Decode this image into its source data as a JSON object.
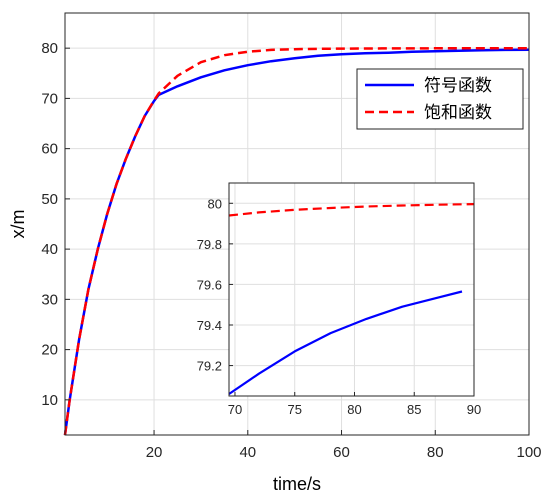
{
  "chart_data": [
    {
      "type": "line",
      "xlabel": "time/s",
      "ylabel": "x/m",
      "xlim": [
        1,
        100
      ],
      "ylim": [
        3,
        87
      ],
      "xticks": [
        "20",
        "40",
        "60",
        "80",
        "100"
      ],
      "yticks": [
        "10",
        "20",
        "30",
        "40",
        "50",
        "60",
        "70",
        "80"
      ],
      "grid": true,
      "legend_position": "top-right",
      "series": [
        {
          "name": "符号函数",
          "color": "#0000ff",
          "style": "solid",
          "x": [
            1,
            2,
            4,
            6,
            8,
            10,
            12,
            14,
            16,
            18,
            20,
            21,
            25,
            30,
            35,
            40,
            45,
            50,
            55,
            60,
            65,
            70,
            75,
            80,
            85,
            90,
            95,
            100
          ],
          "y": [
            3,
            10,
            22,
            32,
            40,
            47,
            53,
            58,
            62.5,
            66.5,
            69.5,
            70.7,
            72.4,
            74.2,
            75.6,
            76.6,
            77.4,
            78.0,
            78.5,
            78.8,
            79.0,
            79.1,
            79.28,
            79.4,
            79.5,
            79.58,
            79.65,
            79.7
          ]
        },
        {
          "name": "饱和函数",
          "color": "#ff0000",
          "style": "dashed",
          "x": [
            1,
            2,
            4,
            6,
            8,
            10,
            12,
            14,
            16,
            18,
            20,
            21,
            25,
            30,
            35,
            40,
            45,
            50,
            55,
            60,
            70,
            80,
            90,
            100
          ],
          "y": [
            3,
            10,
            22,
            32,
            40,
            47,
            53,
            58,
            62.5,
            66.5,
            69.6,
            71.0,
            74.5,
            77.2,
            78.6,
            79.3,
            79.65,
            79.8,
            79.88,
            79.92,
            79.95,
            79.98,
            79.99,
            80.0
          ]
        }
      ]
    },
    {
      "type": "line",
      "role": "inset",
      "xlim": [
        69.5,
        90
      ],
      "ylim": [
        79.05,
        80.1
      ],
      "xticks": [
        "70",
        "75",
        "80",
        "85",
        "90"
      ],
      "yticks": [
        "79.2",
        "79.4",
        "79.6",
        "79.8",
        "80"
      ],
      "grid": true,
      "series": [
        {
          "color": "#0000ff",
          "style": "solid",
          "x": [
            69.5,
            72,
            75,
            78,
            81,
            84,
            87,
            89
          ],
          "y": [
            79.06,
            79.16,
            79.27,
            79.36,
            79.43,
            79.49,
            79.535,
            79.565
          ]
        },
        {
          "color": "#ff0000",
          "style": "dashed",
          "x": [
            69.5,
            72,
            75,
            78,
            81,
            84,
            87,
            90
          ],
          "y": [
            79.94,
            79.955,
            79.968,
            79.977,
            79.984,
            79.989,
            79.993,
            79.996
          ]
        }
      ]
    }
  ]
}
